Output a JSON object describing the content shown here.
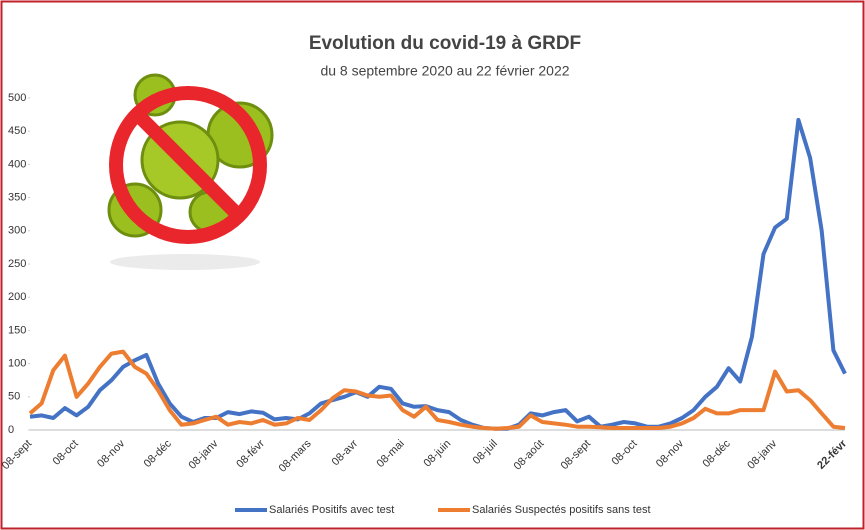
{
  "chart_data": {
    "type": "line",
    "title": "Evolution du covid-19 à GRDF",
    "subtitle": "du 8 septembre 2020 au 22 février 2022",
    "categories": [
      "08-sept",
      null,
      null,
      null,
      "08-oct",
      null,
      null,
      null,
      "08-nov",
      null,
      null,
      null,
      "08-déc",
      null,
      null,
      null,
      "08-janv",
      null,
      null,
      null,
      "08-févr",
      null,
      null,
      null,
      "08-mars",
      null,
      null,
      null,
      "08-avr",
      null,
      null,
      null,
      "08-mai",
      null,
      null,
      null,
      "08-juin",
      null,
      null,
      null,
      "08-juil",
      null,
      null,
      null,
      "08-août",
      null,
      null,
      null,
      "08-sept",
      null,
      null,
      null,
      "08-oct",
      null,
      null,
      null,
      "08-nov",
      null,
      null,
      null,
      "08-déc",
      null,
      null,
      null,
      "08-janv",
      null,
      null,
      null,
      null,
      null,
      "22-févr"
    ],
    "series": [
      {
        "name": "Salariés Positifs avec test",
        "color": "#4472c4",
        "values": [
          20,
          22,
          18,
          33,
          22,
          35,
          60,
          75,
          95,
          105,
          113,
          70,
          40,
          20,
          12,
          18,
          18,
          27,
          24,
          28,
          26,
          16,
          18,
          16,
          25,
          40,
          45,
          50,
          57,
          50,
          65,
          62,
          40,
          35,
          36,
          30,
          27,
          15,
          8,
          3,
          2,
          2,
          8,
          25,
          22,
          27,
          30,
          13,
          20,
          5,
          8,
          12,
          10,
          5,
          5,
          10,
          18,
          30,
          50,
          65,
          93,
          73,
          140,
          265,
          305,
          318,
          467,
          410,
          300,
          120,
          85
        ]
      },
      {
        "name": "Salariés Suspectés positifs sans test",
        "color": "#ed7d31",
        "values": [
          25,
          40,
          90,
          112,
          50,
          70,
          95,
          115,
          118,
          95,
          85,
          60,
          30,
          8,
          10,
          15,
          20,
          8,
          12,
          10,
          15,
          8,
          10,
          18,
          15,
          30,
          48,
          60,
          58,
          52,
          50,
          52,
          30,
          20,
          35,
          15,
          12,
          8,
          5,
          3,
          2,
          3,
          5,
          22,
          12,
          10,
          8,
          5,
          5,
          4,
          3,
          3,
          3,
          3,
          3,
          5,
          10,
          18,
          32,
          25,
          25,
          30,
          30,
          30,
          88,
          58,
          60,
          45,
          25,
          5,
          3
        ]
      }
    ],
    "ylim": [
      0,
      500
    ],
    "yticks": [
      0,
      50,
      100,
      150,
      200,
      250,
      300,
      350,
      400,
      450,
      500
    ],
    "grid": false,
    "legend": "bottom"
  }
}
